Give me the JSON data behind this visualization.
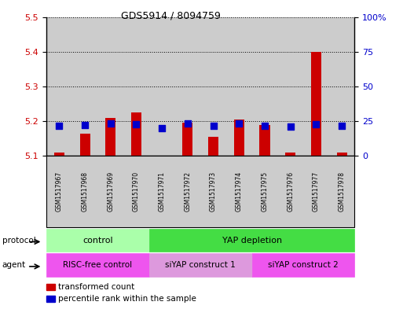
{
  "title": "GDS5914 / 8094759",
  "samples": [
    "GSM1517967",
    "GSM1517968",
    "GSM1517969",
    "GSM1517970",
    "GSM1517971",
    "GSM1517972",
    "GSM1517973",
    "GSM1517974",
    "GSM1517975",
    "GSM1517976",
    "GSM1517977",
    "GSM1517978"
  ],
  "transformed_count": [
    5.11,
    5.165,
    5.21,
    5.225,
    5.102,
    5.195,
    5.155,
    5.205,
    5.19,
    5.11,
    5.4,
    5.11
  ],
  "percentile_rank": [
    22,
    22.5,
    23.5,
    23,
    20,
    23.5,
    22,
    23.5,
    22,
    21,
    23,
    22
  ],
  "ylim_left": [
    5.1,
    5.5
  ],
  "ylim_right": [
    0,
    100
  ],
  "yticks_left": [
    5.1,
    5.2,
    5.3,
    5.4,
    5.5
  ],
  "yticks_right": [
    0,
    25,
    50,
    75,
    100
  ],
  "ytick_labels_right": [
    "0",
    "25",
    "50",
    "75",
    "100%"
  ],
  "bar_color": "#cc0000",
  "dot_color": "#0000cc",
  "bar_width": 0.4,
  "dot_size": 28,
  "protocol_groups": [
    {
      "label": "control",
      "start": 0,
      "end": 3,
      "color": "#aaffaa"
    },
    {
      "label": "YAP depletion",
      "start": 4,
      "end": 11,
      "color": "#44dd44"
    }
  ],
  "agent_groups": [
    {
      "label": "RISC-free control",
      "start": 0,
      "end": 3,
      "color": "#ee55ee"
    },
    {
      "label": "siYAP construct 1",
      "start": 4,
      "end": 7,
      "color": "#dd99dd"
    },
    {
      "label": "siYAP construct 2",
      "start": 8,
      "end": 11,
      "color": "#ee55ee"
    }
  ],
  "legend_items": [
    {
      "label": "transformed count",
      "color": "#cc0000"
    },
    {
      "label": "percentile rank within the sample",
      "color": "#0000cc"
    }
  ],
  "col_bg": "#cccccc",
  "plot_bg": "#ffffff",
  "left_axis_color": "#cc0000",
  "right_axis_color": "#0000cc",
  "grid_color": "#000000"
}
